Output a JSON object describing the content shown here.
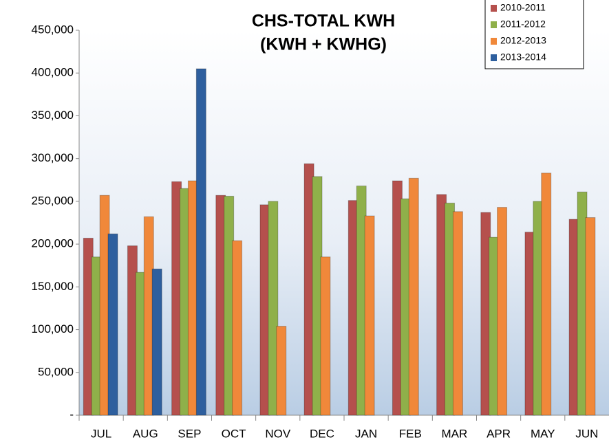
{
  "chart_data": {
    "type": "bar",
    "title": "CHS-TOTAL KWH",
    "subtitle": "(KWH + KWHG)",
    "categories": [
      "JUL",
      "AUG",
      "SEP",
      "OCT",
      "NOV",
      "DEC",
      "JAN",
      "FEB",
      "MAR",
      "APR",
      "MAY",
      "JUN"
    ],
    "series": [
      {
        "name": "2010-2011",
        "color": "#b5504d",
        "values": [
          207000,
          198000,
          273000,
          257000,
          246000,
          294000,
          251000,
          274000,
          258000,
          237000,
          214000,
          229000
        ]
      },
      {
        "name": "2011-2012",
        "color": "#8fb04a",
        "values": [
          185000,
          167000,
          265000,
          256000,
          250000,
          279000,
          268000,
          253000,
          248000,
          208000,
          250000,
          261000
        ]
      },
      {
        "name": "2012-2013",
        "color": "#f0883a",
        "values": [
          257000,
          232000,
          274000,
          204000,
          104000,
          185000,
          233000,
          277000,
          238000,
          243000,
          283000,
          231000
        ]
      },
      {
        "name": "2013-2014",
        "color": "#2e5f9e",
        "values": [
          212000,
          171000,
          405000,
          null,
          null,
          null,
          null,
          null,
          null,
          null,
          null,
          null
        ]
      }
    ],
    "ylim": [
      0,
      450000
    ],
    "yticks": [
      {
        "value": 0,
        "label": "-"
      },
      {
        "value": 50000,
        "label": "50,000"
      },
      {
        "value": 100000,
        "label": "100,000"
      },
      {
        "value": 150000,
        "label": "150,000"
      },
      {
        "value": 200000,
        "label": "200,000"
      },
      {
        "value": 250000,
        "label": "250,000"
      },
      {
        "value": 300000,
        "label": "300,000"
      },
      {
        "value": 350000,
        "label": "350,000"
      },
      {
        "value": 400000,
        "label": "400,000"
      },
      {
        "value": 450000,
        "label": "450,000"
      }
    ],
    "legend": "top-right"
  }
}
